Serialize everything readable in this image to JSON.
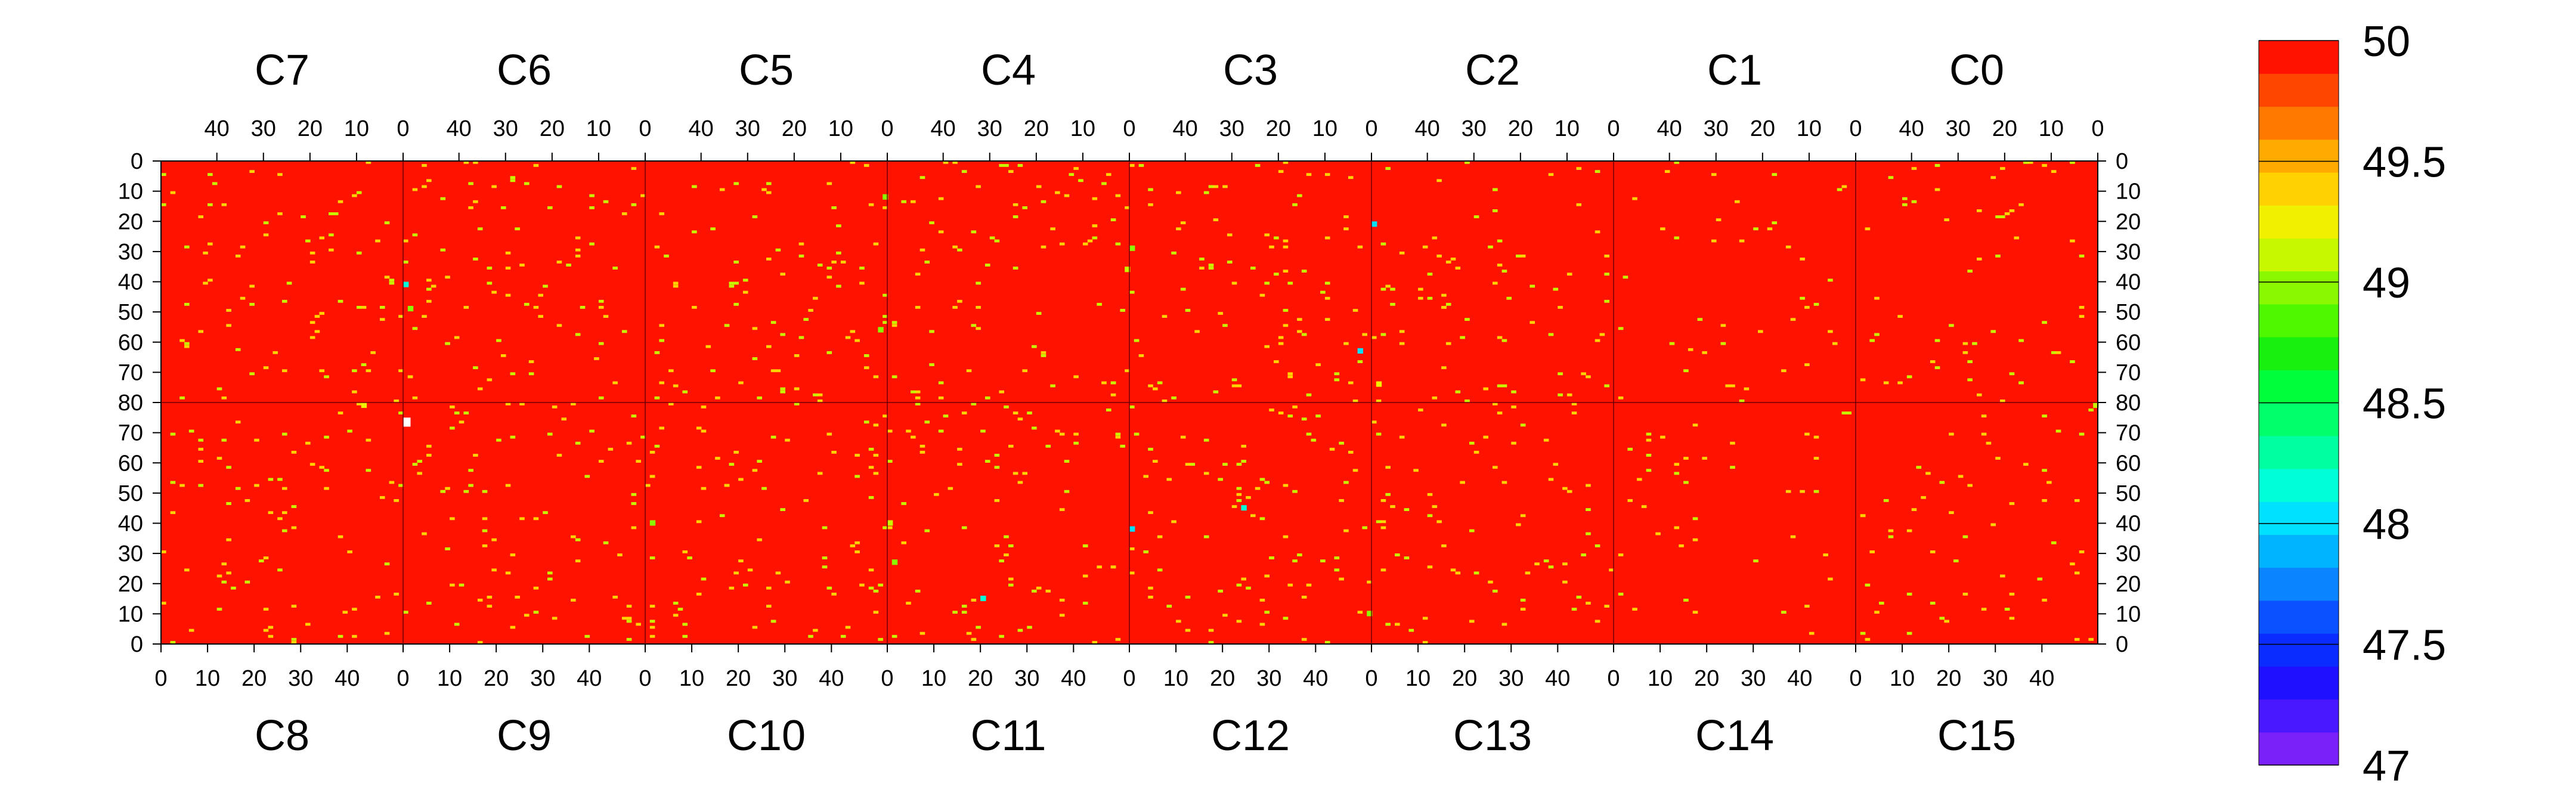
{
  "chart_data": {
    "type": "heatmap",
    "title": "",
    "top_chips": [
      "C7",
      "C6",
      "C5",
      "C4",
      "C3",
      "C2",
      "C1",
      "C0"
    ],
    "bottom_chips": [
      "C8",
      "C9",
      "C10",
      "C11",
      "C12",
      "C13",
      "C14",
      "C15"
    ],
    "top_x_ticks": [
      "40",
      "30",
      "20",
      "10",
      "0"
    ],
    "bottom_x_ticks": [
      "0",
      "10",
      "20",
      "30",
      "40"
    ],
    "top_y_ticks": [
      "0",
      "10",
      "20",
      "30",
      "40",
      "50",
      "60",
      "70",
      "80"
    ],
    "bottom_y_ticks": [
      "70",
      "60",
      "50",
      "40",
      "30",
      "20",
      "10",
      "0"
    ],
    "chip_columns": 52,
    "rows_per_half": 80,
    "baseline_value": 50,
    "color_scale": {
      "min": 47,
      "max": 50,
      "tick_labels": [
        "50",
        "49.5",
        "49",
        "48.5",
        "48",
        "47.5",
        "47"
      ],
      "colors": [
        "#7a20f8",
        "#4a18ff",
        "#1f10ff",
        "#0a2cff",
        "#0a52ff",
        "#0a84ff",
        "#00b4ff",
        "#00e0ff",
        "#00ffd8",
        "#00ffa0",
        "#00ff6a",
        "#00ff3a",
        "#18f010",
        "#50f800",
        "#8af800",
        "#c8f800",
        "#f0f000",
        "#ffd200",
        "#ffaa00",
        "#ff7800",
        "#ff4600",
        "#ff1200"
      ]
    },
    "outlier_cells": [
      {
        "half": "top",
        "chip": "C7",
        "row": 80,
        "col": 8,
        "value": 49.2
      },
      {
        "half": "top",
        "chip": "C6",
        "row": 40,
        "col": 51,
        "value": 48.2
      },
      {
        "half": "top",
        "chip": "C6",
        "row": 48,
        "col": 50,
        "value": 49.0
      },
      {
        "half": "top",
        "chip": "C5",
        "row": 11,
        "col": 0,
        "value": 49.0
      },
      {
        "half": "top",
        "chip": "C5",
        "row": 55,
        "col": 1,
        "value": 49.0
      },
      {
        "half": "top",
        "chip": "C4",
        "row": 35,
        "col": 0,
        "value": 49.1
      },
      {
        "half": "top",
        "chip": "C3",
        "row": 28,
        "col": 51,
        "value": 49.0
      },
      {
        "half": "top",
        "chip": "C3",
        "row": 62,
        "col": 2,
        "value": 48.0
      },
      {
        "half": "top",
        "chip": "C2",
        "row": 20,
        "col": 51,
        "value": 48.0
      },
      {
        "half": "top",
        "chip": "C2",
        "row": 73,
        "col": 50,
        "value": 49.2
      },
      {
        "half": "top",
        "chip": "C0",
        "row": 80,
        "col": 0,
        "value": 49.1
      },
      {
        "half": "bottom",
        "chip": "C10",
        "row": 40,
        "col": 1,
        "value": 49.0
      },
      {
        "half": "bottom",
        "chip": "C11",
        "row": 40,
        "col": 0,
        "value": 49.1
      },
      {
        "half": "bottom",
        "chip": "C11",
        "row": 27,
        "col": 1,
        "value": 49.0
      },
      {
        "half": "bottom",
        "chip": "C12",
        "row": 10,
        "col": 51,
        "value": 49.0
      },
      {
        "half": "bottom",
        "chip": "C12",
        "row": 38,
        "col": 0,
        "value": 48.0
      },
      {
        "half": "bottom",
        "chip": "C11",
        "row": 15,
        "col": 20,
        "value": 48.2
      },
      {
        "half": "bottom",
        "chip": "C12",
        "row": 45,
        "col": 24,
        "value": 48.1
      }
    ],
    "masked_cells": [
      {
        "half": "bottom",
        "chip": "C9",
        "row": 74,
        "col": 0
      }
    ]
  }
}
